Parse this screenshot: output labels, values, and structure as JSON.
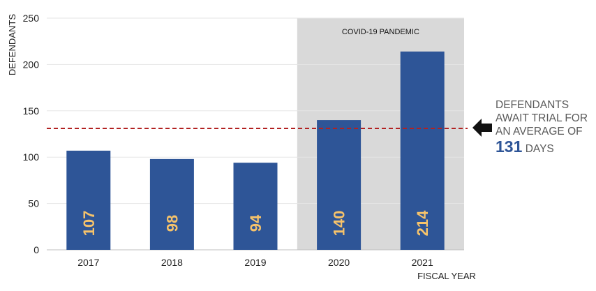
{
  "chart_data": {
    "type": "bar",
    "categories": [
      "2017",
      "2018",
      "2019",
      "2020",
      "2021"
    ],
    "values": [
      107,
      98,
      94,
      140,
      214
    ],
    "value_labels": [
      "107",
      "98",
      "94",
      "140",
      "214"
    ],
    "ylabel": "DEFENDANTS",
    "xlabel": "FISCAL YEAR",
    "ylim": [
      0,
      250
    ],
    "yticks": [
      "0",
      "50",
      "100",
      "150",
      "200",
      "250"
    ],
    "grid": true,
    "bar_color": "#2e5597",
    "label_color": "#f6c36b",
    "average_line": {
      "value": 131,
      "color": "#b22222",
      "style": "dashed"
    },
    "highlight_region": {
      "label": "COVID-19 PANDEMIC",
      "categories": [
        "2020",
        "2021"
      ],
      "color": "#d9d9d9"
    }
  },
  "callout": {
    "line1": "DEFENDANTS",
    "line2": "AWAIT TRIAL FOR",
    "line3": "AN AVERAGE OF",
    "value": "131",
    "unit": "DAYS",
    "arrow_icon": "left-arrow-icon"
  }
}
